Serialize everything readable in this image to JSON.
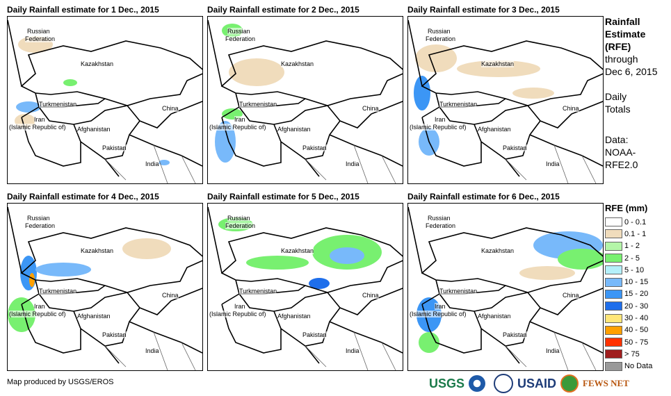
{
  "panels": [
    {
      "title": "Daily Rainfall estimate for  1 Dec., 2015"
    },
    {
      "title": "Daily Rainfall estimate for  2 Dec., 2015"
    },
    {
      "title": "Daily Rainfall estimate for  3 Dec., 2015"
    },
    {
      "title": "Daily Rainfall estimate for  4 Dec., 2015"
    },
    {
      "title": "Daily Rainfall estimate for  5 Dec., 2015"
    },
    {
      "title": "Daily Rainfall estimate for  6 Dec., 2015"
    }
  ],
  "labels": {
    "russia1": "Russian",
    "russia2": "Federation",
    "kazakhstan": "Kazakhstan",
    "turkmenistan": "Turkmenistan",
    "iran1": "Iran",
    "iran2": "(Islamic Republic of)",
    "afghanistan": "Afghanistan",
    "pakistan": "Pakistan",
    "china": "China",
    "india": "India"
  },
  "side": {
    "l1": "Rainfall",
    "l2": "Estimate",
    "l3": "(RFE)",
    "l4": "through",
    "l5": "Dec 6, 2015",
    "l6": "Daily",
    "l7": "Totals",
    "l8": "Data:",
    "l9": "NOAA-",
    "l10": "RFE2.0"
  },
  "legend": {
    "title": "RFE (mm)",
    "items": [
      {
        "label": "0 - 0.1",
        "color": "#ffffff"
      },
      {
        "label": "0.1  - 1",
        "color": "#f0dcbc"
      },
      {
        "label": "1 - 2",
        "color": "#b4f5a8"
      },
      {
        "label": "2 - 5",
        "color": "#78f070"
      },
      {
        "label": "5 - 10",
        "color": "#b4f0fa"
      },
      {
        "label": "10 - 15",
        "color": "#78b9fa"
      },
      {
        "label": "15 - 20",
        "color": "#3c96f5"
      },
      {
        "label": "20 - 30",
        "color": "#1e6eeb"
      },
      {
        "label": "30 - 40",
        "color": "#ffe678"
      },
      {
        "label": "40 - 50",
        "color": "#ffa000"
      },
      {
        "label": "50 - 75",
        "color": "#ff3200"
      },
      {
        "label": "> 75",
        "color": "#a01e1e"
      },
      {
        "label": "No Data",
        "color": "#999999"
      }
    ]
  },
  "footer": "Map produced by USGS/EROS",
  "logos": {
    "usgs": "USGS",
    "usaid": "USAID",
    "fews": "FEWS NET"
  }
}
